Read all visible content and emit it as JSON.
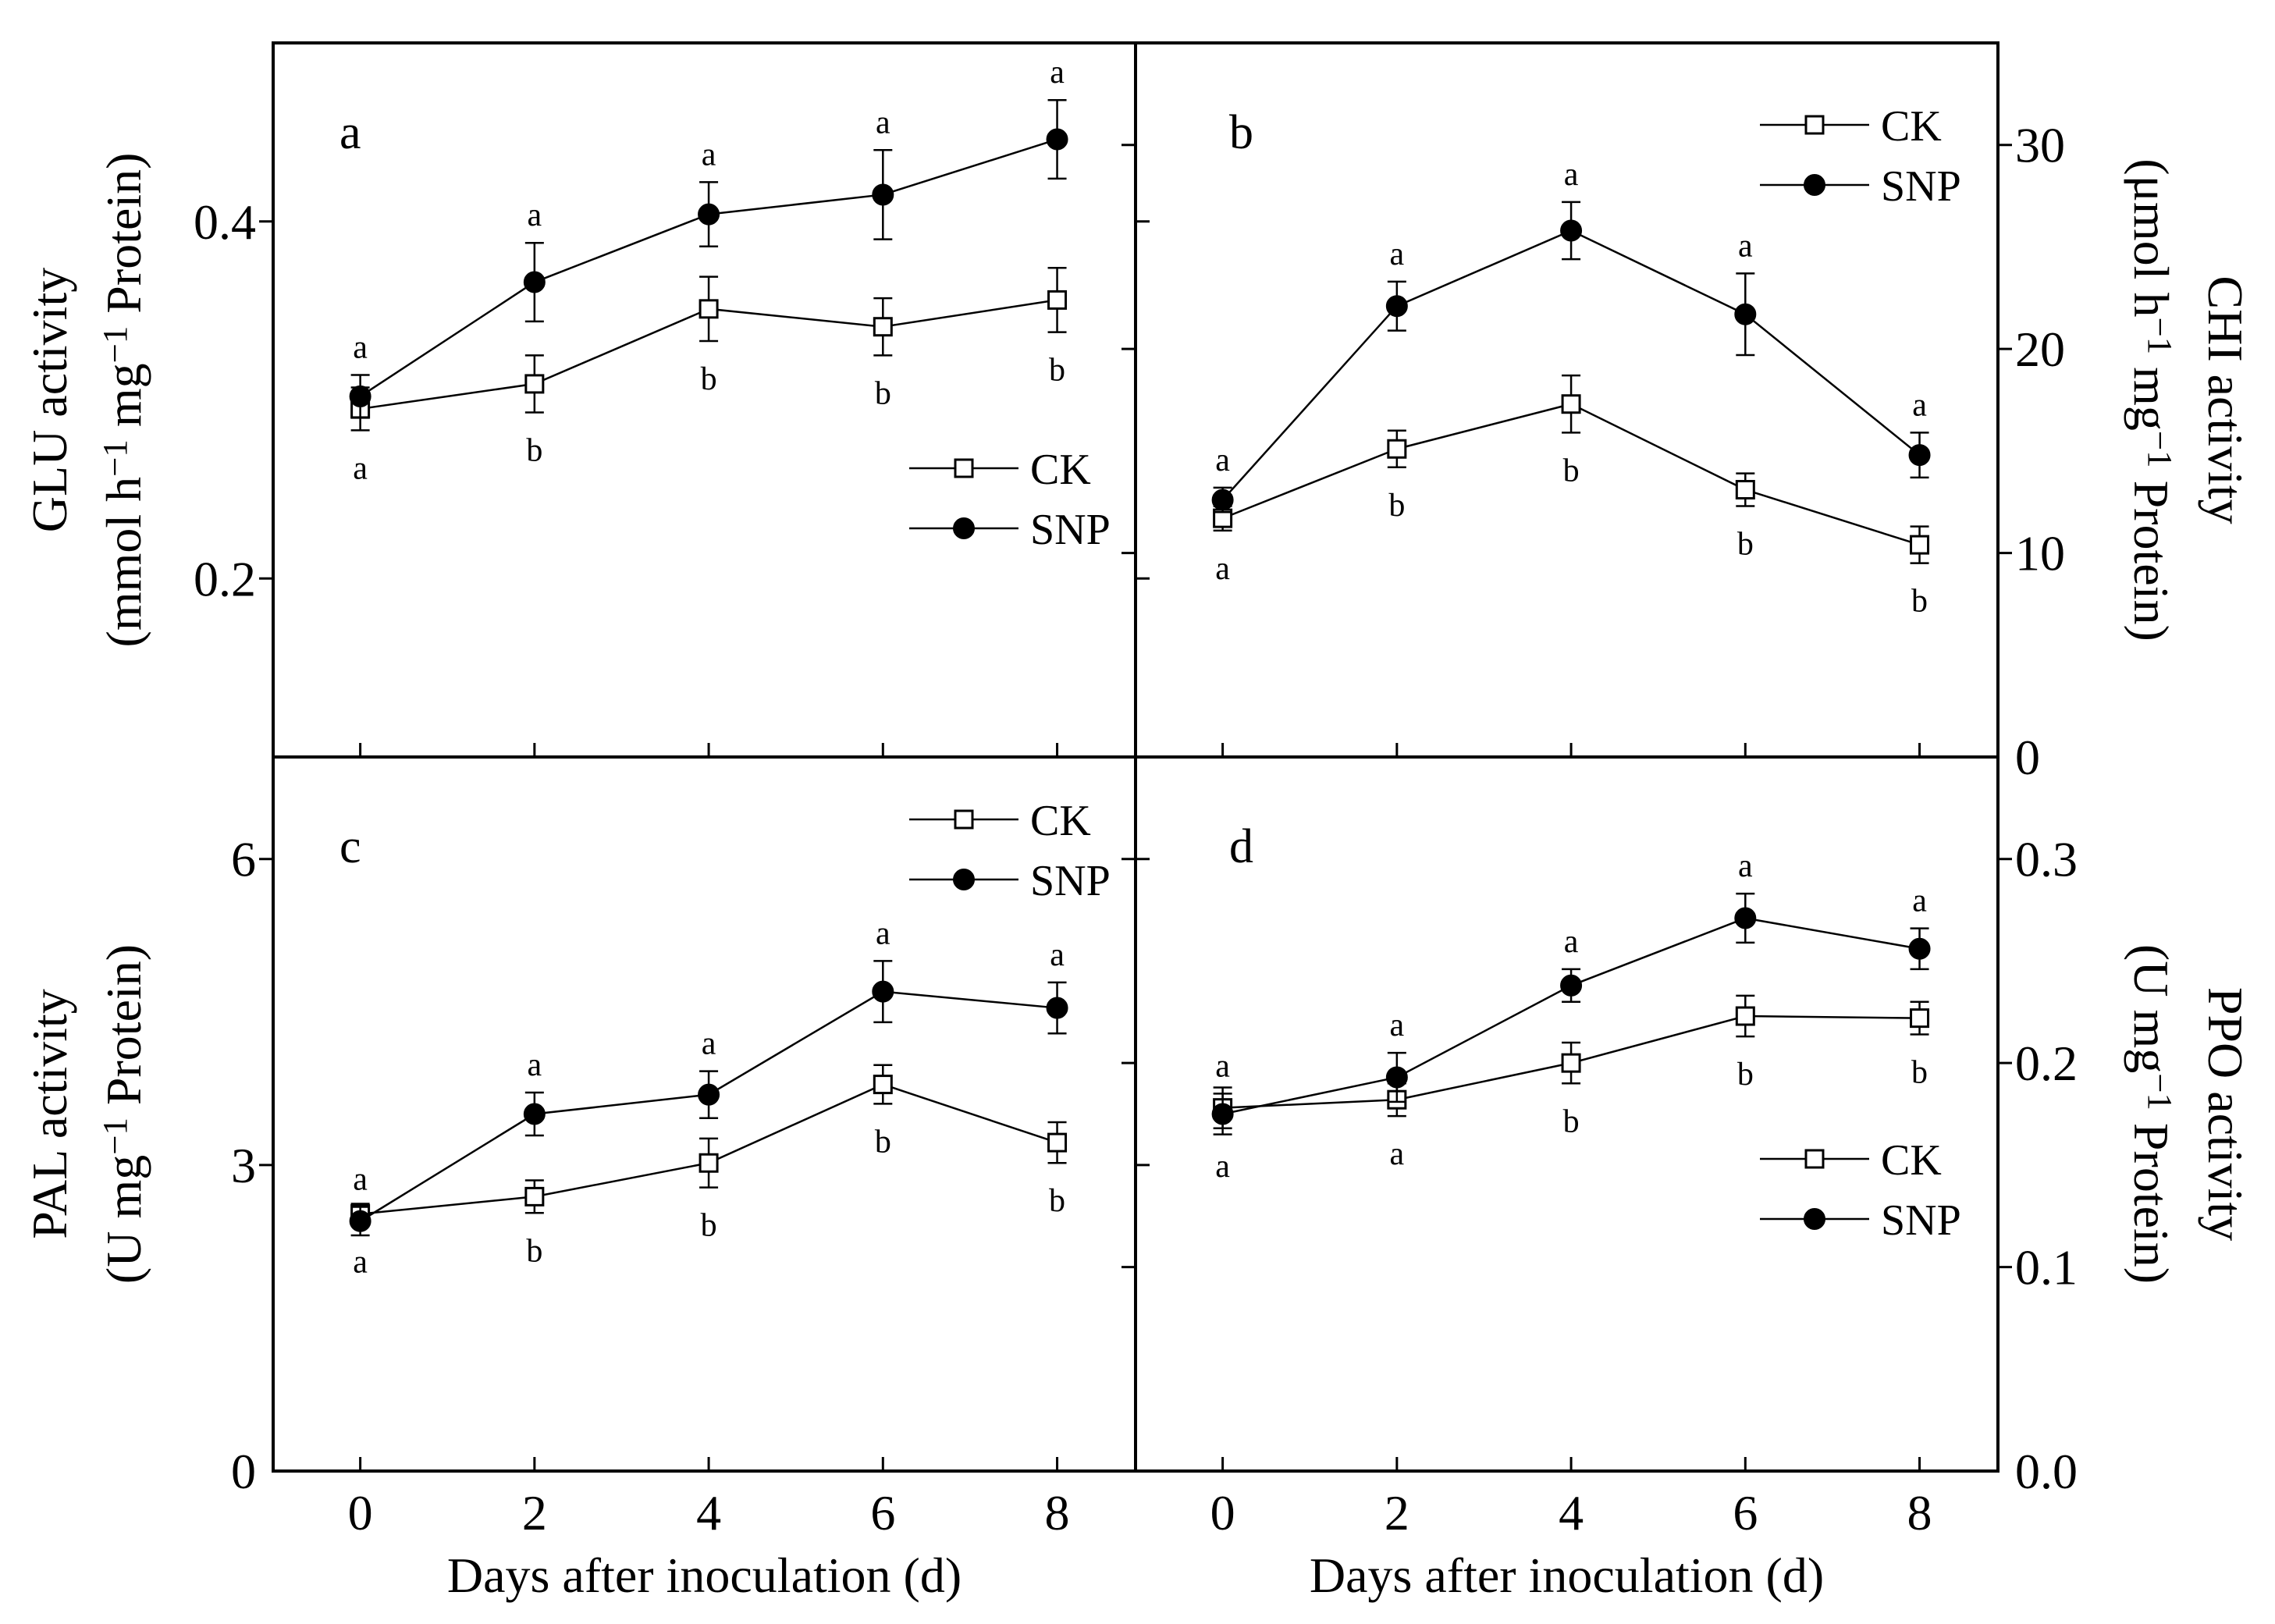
{
  "chart_data": [
    {
      "id": "a",
      "type": "line",
      "panel_label": "a",
      "ylabel_line1": "GLU activity",
      "ylabel_line2": "(mmol h⁻¹ mg⁻¹ Protein)",
      "y_axis_side": "left",
      "ylim": [
        0.1,
        0.5
      ],
      "yticks": [
        0.2,
        0.4
      ],
      "ytick_labels": [
        "0.2",
        "0.4"
      ],
      "x": [
        0,
        2,
        4,
        6,
        8
      ],
      "legend": {
        "position": "middle-right",
        "entries": [
          "CK",
          "SNP"
        ]
      },
      "series": [
        {
          "name": "CK",
          "marker": "open-square",
          "values": [
            0.295,
            0.309,
            0.351,
            0.341,
            0.356
          ],
          "errors": [
            0.012,
            0.016,
            0.018,
            0.016,
            0.018
          ],
          "letters": [
            "a",
            "b",
            "b",
            "b",
            "b"
          ],
          "letter_side": "below"
        },
        {
          "name": "SNP",
          "marker": "filled-circle",
          "values": [
            0.302,
            0.366,
            0.404,
            0.415,
            0.446
          ],
          "errors": [
            0.012,
            0.022,
            0.018,
            0.025,
            0.022
          ],
          "letters": [
            "a",
            "a",
            "a",
            "a",
            "a"
          ],
          "letter_side": "above"
        }
      ]
    },
    {
      "id": "b",
      "type": "line",
      "panel_label": "b",
      "ylabel_line1": "CHI activity",
      "ylabel_line2": "(μmol h⁻¹ mg⁻¹ Protein)",
      "y_axis_side": "right",
      "ylim": [
        0,
        35
      ],
      "yticks": [
        0,
        10,
        20,
        30
      ],
      "ytick_labels": [
        "0",
        "10",
        "20",
        "30"
      ],
      "x": [
        0,
        2,
        4,
        6,
        8
      ],
      "legend": {
        "position": "top-right",
        "entries": [
          "CK",
          "SNP"
        ]
      },
      "series": [
        {
          "name": "CK",
          "marker": "open-square",
          "values": [
            11.7,
            15.1,
            17.3,
            13.1,
            10.4
          ],
          "errors": [
            0.6,
            0.9,
            1.4,
            0.8,
            0.9
          ],
          "letters": [
            "a",
            "b",
            "b",
            "b",
            "b"
          ],
          "letter_side": "below"
        },
        {
          "name": "SNP",
          "marker": "filled-circle",
          "values": [
            12.6,
            22.1,
            25.8,
            21.7,
            14.8
          ],
          "errors": [
            0.6,
            1.2,
            1.4,
            2.0,
            1.1
          ],
          "letters": [
            "a",
            "a",
            "a",
            "a",
            "a"
          ],
          "letter_side": "above"
        }
      ]
    },
    {
      "id": "c",
      "type": "line",
      "panel_label": "c",
      "ylabel_line1": "PAL activity",
      "ylabel_line2": "(U mg⁻¹ Protein)",
      "y_axis_side": "left",
      "ylim": [
        0,
        7
      ],
      "yticks": [
        0,
        3,
        6
      ],
      "ytick_labels": [
        "0",
        "3",
        "6"
      ],
      "x": [
        0,
        2,
        4,
        6,
        8
      ],
      "xlabel": "Days after inoculation (d)",
      "xtick_labels": [
        "0",
        "2",
        "4",
        "6",
        "8"
      ],
      "legend": {
        "position": "top-right",
        "entries": [
          "CK",
          "SNP"
        ]
      },
      "series": [
        {
          "name": "CK",
          "marker": "open-square",
          "values": [
            2.52,
            2.69,
            3.02,
            3.79,
            3.22
          ],
          "errors": [
            0.1,
            0.16,
            0.24,
            0.19,
            0.2
          ],
          "letters": [
            "a",
            "b",
            "b",
            "b",
            "b"
          ],
          "letter_side": "below"
        },
        {
          "name": "SNP",
          "marker": "filled-circle",
          "values": [
            2.45,
            3.5,
            3.69,
            4.7,
            4.54
          ],
          "errors": [
            0.14,
            0.21,
            0.23,
            0.3,
            0.25
          ],
          "letters": [
            "a",
            "a",
            "a",
            "a",
            "a"
          ],
          "letter_side": "above"
        }
      ]
    },
    {
      "id": "d",
      "type": "line",
      "panel_label": "d",
      "ylabel_line1": "PPO activity",
      "ylabel_line2": "(U mg⁻¹ Protein)",
      "y_axis_side": "right",
      "ylim": [
        0,
        0.35
      ],
      "yticks": [
        0.0,
        0.1,
        0.2,
        0.3
      ],
      "ytick_labels": [
        "0.0",
        "0.1",
        "0.2",
        "0.3"
      ],
      "x": [
        0,
        2,
        4,
        6,
        8
      ],
      "xlabel": "Days after inoculation (d)",
      "xtick_labels": [
        "0",
        "2",
        "4",
        "6",
        "8"
      ],
      "legend": {
        "position": "bottom-right",
        "entries": [
          "CK",
          "SNP"
        ]
      },
      "series": [
        {
          "name": "CK",
          "marker": "open-square",
          "values": [
            0.178,
            0.182,
            0.2,
            0.223,
            0.222
          ],
          "errors": [
            0.01,
            0.008,
            0.01,
            0.01,
            0.008
          ],
          "letters": [
            "a",
            "a",
            "b",
            "b",
            "b"
          ],
          "letter_side": "below"
        },
        {
          "name": "SNP",
          "marker": "filled-circle",
          "values": [
            0.175,
            0.193,
            0.238,
            0.271,
            0.256
          ],
          "errors": [
            0.01,
            0.012,
            0.008,
            0.012,
            0.01
          ],
          "letters": [
            "a",
            "a",
            "a",
            "a",
            "a"
          ],
          "letter_side": "above"
        }
      ]
    }
  ]
}
